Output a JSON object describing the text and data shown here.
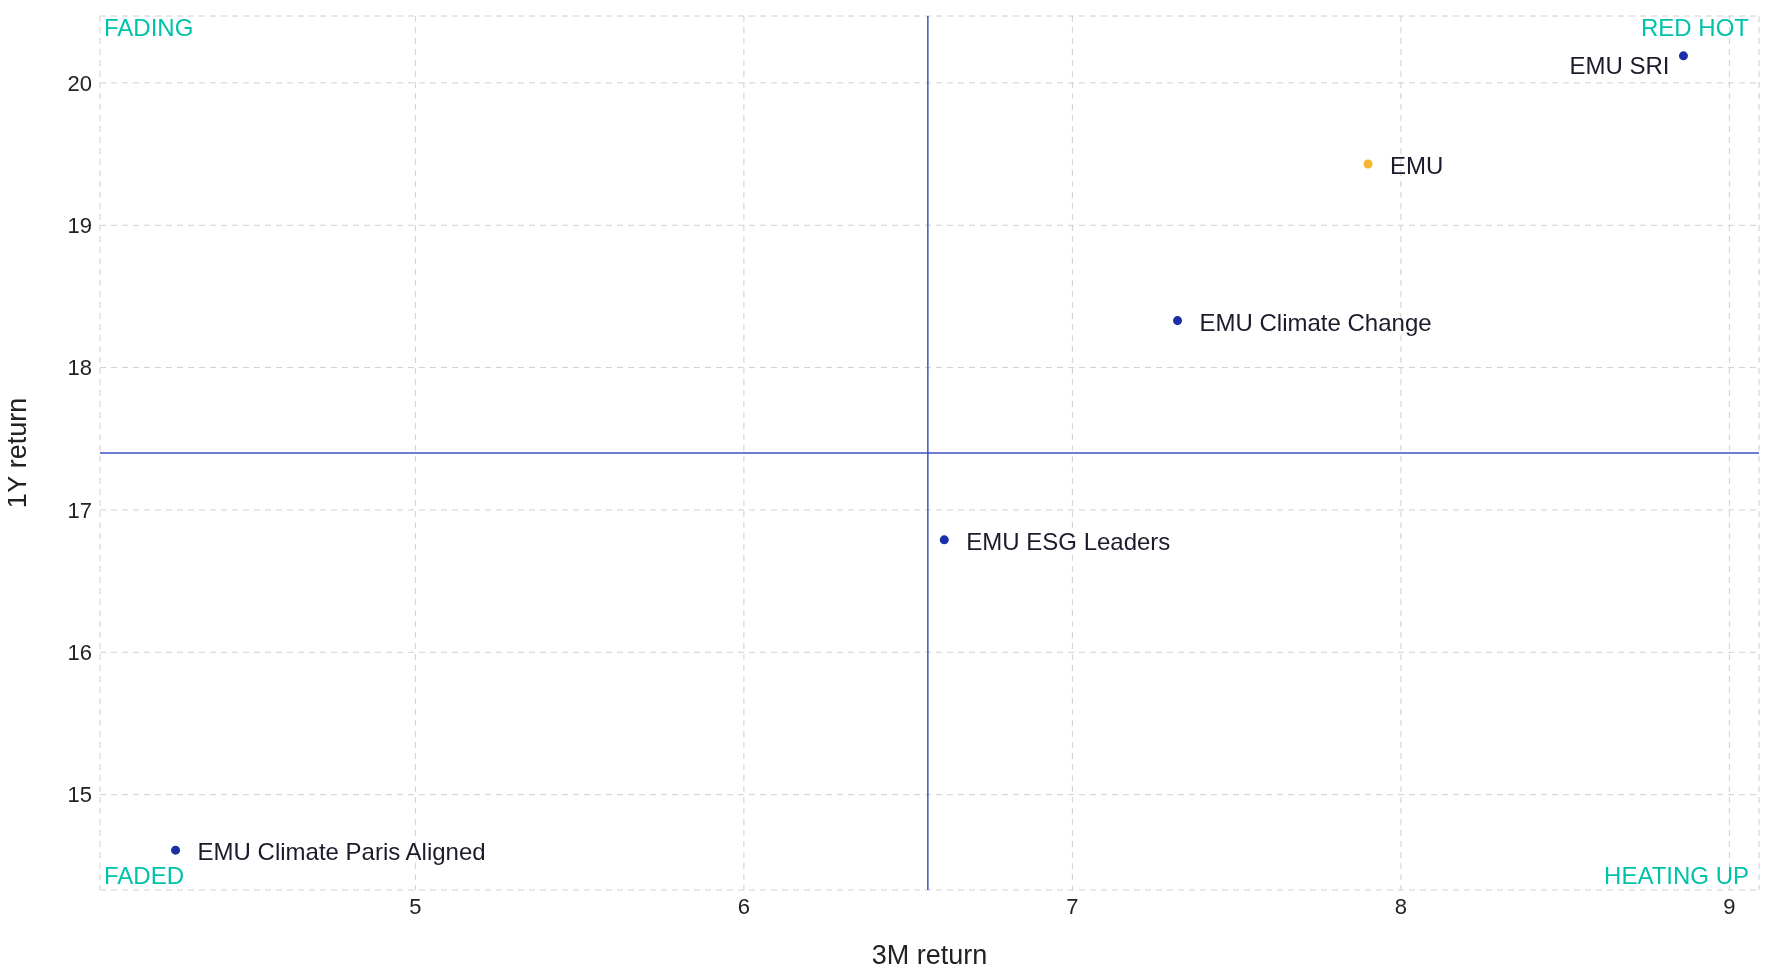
{
  "chart_data": {
    "type": "scatter",
    "xlabel": "3M return",
    "ylabel": "1Y return",
    "xlim": [
      4.04,
      9.09
    ],
    "xticks": [
      5,
      6,
      7,
      8,
      9
    ],
    "ylim": [
      14.33,
      20.47
    ],
    "yticks": [
      15,
      16,
      17,
      18,
      19,
      20
    ],
    "grid": true,
    "marker": "circle",
    "series": [
      {
        "name": "EMU SRI",
        "color": "#1a2fa8",
        "x": [
          8.86
        ],
        "values": [
          20.19
        ]
      },
      {
        "name": "EMU",
        "color": "#f5b731",
        "x": [
          7.9
        ],
        "values": [
          19.43
        ]
      },
      {
        "name": "EMU Climate Change",
        "color": "#1a2fa8",
        "x": [
          7.32
        ],
        "values": [
          18.33
        ]
      },
      {
        "name": "EMU ESG Leaders",
        "color": "#1a2fa8",
        "x": [
          6.61
        ],
        "values": [
          16.79
        ]
      },
      {
        "name": "EMU Climate Paris Aligned",
        "color": "#1a2fa8",
        "x": [
          4.27
        ],
        "values": [
          14.61
        ]
      }
    ],
    "ref_lines": [
      {
        "axis": "x",
        "value": 6.56,
        "color": "#3f51c4"
      },
      {
        "axis": "y",
        "value": 17.4,
        "color": "#3f51c4"
      }
    ],
    "annotations": [
      "FADING",
      "RED HOT",
      "FADED",
      "HEATING UP"
    ]
  }
}
